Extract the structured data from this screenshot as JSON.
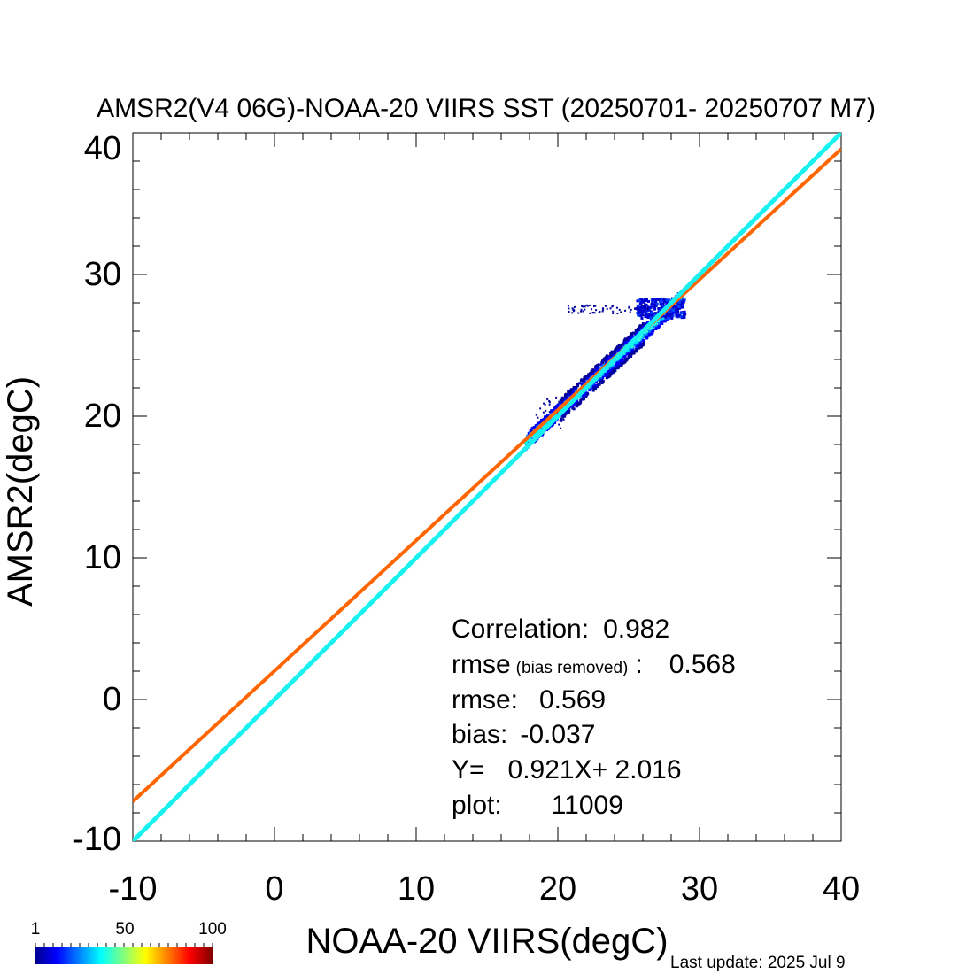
{
  "chart_data": {
    "type": "scatter",
    "title": "AMSR2(V4 06G)-NOAA-20 VIIRS SST (20250701- 20250707 M7)",
    "xlabel": "NOAA-20 VIIRS(degC)",
    "ylabel": "AMSR2(degC)",
    "xlim": [
      -10,
      40
    ],
    "ylim": [
      -10,
      40
    ],
    "x_ticks": [
      "-10",
      "0",
      "10",
      "20",
      "30",
      "40"
    ],
    "y_ticks": [
      "-10",
      "0",
      "10",
      "20",
      "30",
      "40"
    ],
    "grid": false,
    "density_cloud": {
      "description": "2D density scatter of matchups",
      "x_range": [
        17.5,
        30.5
      ],
      "y_range": [
        18,
        28.5
      ]
    },
    "lines": [
      {
        "role": "regression",
        "slope": 0.921,
        "intercept": 2.016,
        "color": "#ff6600"
      },
      {
        "role": "one-to-one",
        "slope": 1,
        "intercept": 0,
        "color": "#19f0f0"
      }
    ],
    "colorbar": {
      "min_label": "1",
      "mid_label": "50",
      "max_label": "100",
      "colors": [
        "#00008f",
        "#0000ff",
        "#00ffff",
        "#ffff00",
        "#ff0000",
        "#800000"
      ]
    }
  },
  "stats": {
    "correlation_label": "Correlation:",
    "correlation_value": "0.982",
    "rmse_br_label": "rmse",
    "rmse_br_note": "(bias removed)",
    "rmse_br_sep": ":",
    "rmse_br_value": "0.568",
    "rmse_label": "rmse:",
    "rmse_value": "0.569",
    "bias_label": "bias:",
    "bias_value": "-0.037",
    "fit_label": "Y=",
    "fit_value": "0.921X+  2.016",
    "plot_label": "plot:",
    "plot_value": "11009"
  },
  "footer": {
    "last_update": "Last update: 2025 Jul  9"
  }
}
